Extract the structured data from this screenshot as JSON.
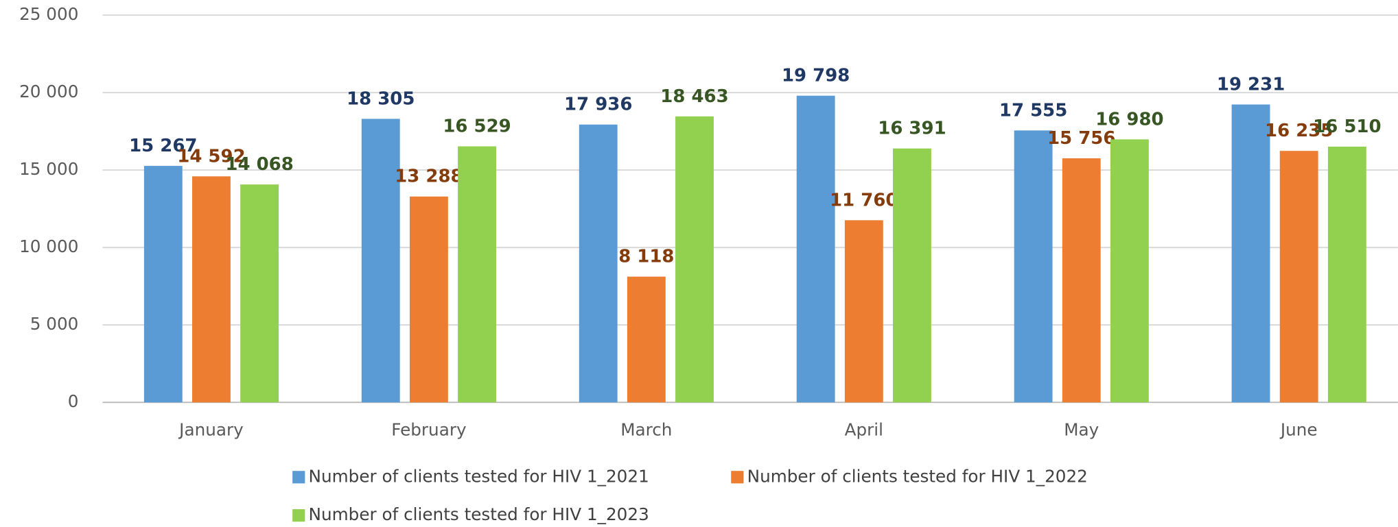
{
  "chart_data": {
    "type": "bar",
    "categories": [
      "January",
      "February",
      "March",
      "April",
      "May",
      "June"
    ],
    "series": [
      {
        "name": "Number of clients tested for HIV 1_2021",
        "color": "#5b9bd5",
        "label_color": "#1f3864",
        "values": [
          15267,
          18305,
          17936,
          19798,
          17555,
          19231
        ],
        "value_labels": [
          "15 267",
          "18 305",
          "17 936",
          "19 798",
          "17 555",
          "19 231"
        ]
      },
      {
        "name": "Number of clients tested for HIV 1_2022",
        "color": "#ed7d31",
        "label_color": "#843c0c",
        "values": [
          14592,
          13288,
          8118,
          11760,
          15756,
          16235
        ],
        "value_labels": [
          "14 592",
          "13 288",
          "8 118",
          "11 760",
          "15 756",
          "16 235"
        ]
      },
      {
        "name": "Number of clients tested for HIV 1_2023",
        "color": "#92d050",
        "label_color": "#375623",
        "values": [
          14068,
          16529,
          18463,
          16391,
          16980,
          16510
        ],
        "value_labels": [
          "14 068",
          "16 529",
          "18 463",
          "16 391",
          "16 980",
          "16 510"
        ]
      }
    ],
    "ylim": [
      0,
      25000
    ],
    "yticks": [
      0,
      {
        "value": 5000,
        "label": "5 000"
      },
      {
        "value": 10000,
        "label": "10 000"
      },
      {
        "value": 15000,
        "label": "15 000"
      },
      {
        "value": 20000,
        "label": "20 000"
      },
      {
        "value": 25000,
        "label": "25 000"
      }
    ],
    "grid": true
  }
}
